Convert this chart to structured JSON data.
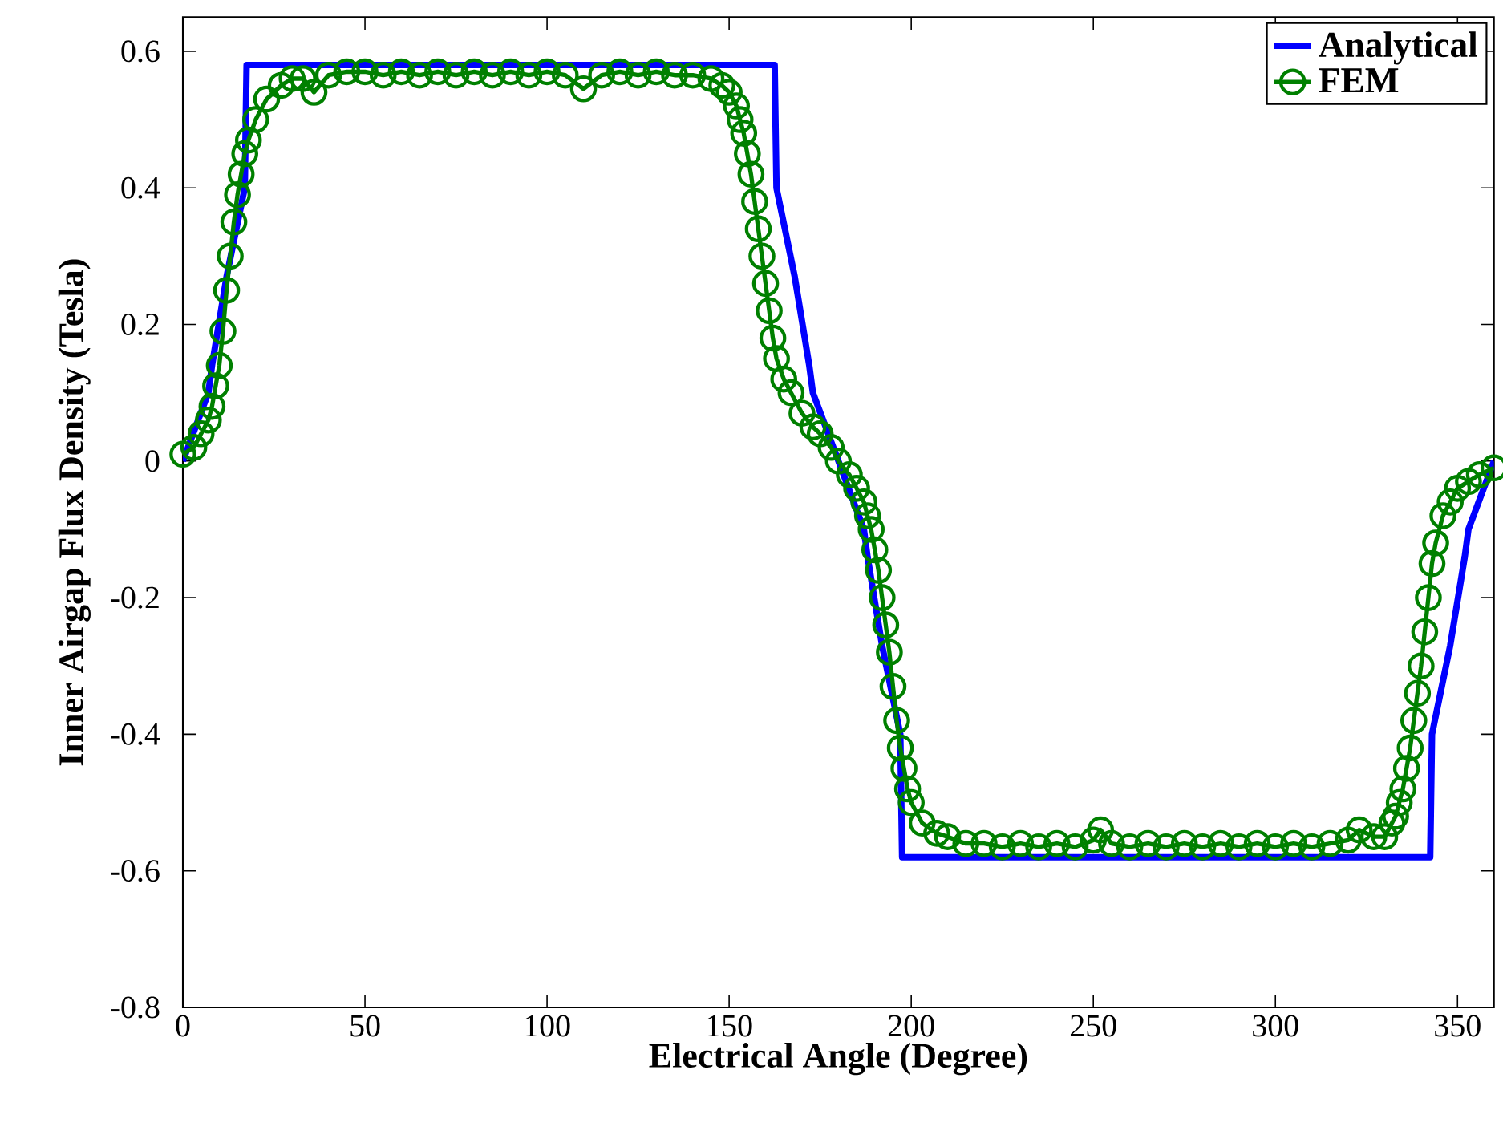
{
  "chart_data": {
    "type": "line",
    "xlabel": "Electrical Angle (Degree)",
    "ylabel": "Inner Airgap Flux Density (Tesla)",
    "xlim": [
      0,
      360
    ],
    "ylim": [
      -0.8,
      0.65
    ],
    "xticks": [
      0,
      50,
      100,
      150,
      200,
      250,
      300,
      350
    ],
    "yticks": [
      -0.8,
      -0.6,
      -0.4,
      -0.2,
      0,
      0.2,
      0.4,
      0.6
    ],
    "grid": false,
    "legend": "top right",
    "series": [
      {
        "name": "Analytical",
        "color": "#0000ff",
        "marker": "none",
        "x": [
          0,
          7,
          8,
          12,
          17,
          17.5,
          162.5,
          163,
          168,
          172,
          173,
          180,
          187,
          188,
          192,
          197,
          197.5,
          342.5,
          343,
          348,
          352,
          353,
          360
        ],
        "values": [
          0,
          0.1,
          0.14,
          0.27,
          0.4,
          0.58,
          0.58,
          0.4,
          0.27,
          0.14,
          0.1,
          0,
          -0.1,
          -0.14,
          -0.27,
          -0.4,
          -0.58,
          -0.58,
          -0.4,
          -0.27,
          -0.14,
          -0.1,
          0
        ]
      },
      {
        "name": "FEM",
        "color": "#008000",
        "marker": "circle",
        "x": [
          0,
          3,
          5,
          7,
          8,
          9,
          10,
          11,
          12,
          13,
          14,
          15,
          16,
          17,
          18,
          20,
          23,
          27,
          30,
          33,
          36,
          40,
          45,
          50,
          55,
          60,
          65,
          70,
          75,
          80,
          85,
          90,
          95,
          100,
          105,
          110,
          115,
          120,
          125,
          130,
          135,
          140,
          145,
          148,
          150,
          152,
          153,
          154,
          155,
          156,
          157,
          158,
          159,
          160,
          161,
          162,
          163,
          165,
          167,
          170,
          173,
          175,
          178,
          180,
          183,
          185,
          187,
          188,
          189,
          190,
          191,
          192,
          193,
          194,
          195,
          196,
          197,
          198,
          199,
          200,
          203,
          207,
          210,
          215,
          220,
          225,
          230,
          235,
          240,
          245,
          250,
          252,
          255,
          260,
          265,
          270,
          275,
          280,
          285,
          290,
          295,
          300,
          305,
          310,
          315,
          320,
          323,
          327,
          330,
          332,
          333,
          334,
          335,
          336,
          337,
          338,
          339,
          340,
          341,
          342,
          343,
          344,
          346,
          348,
          350,
          353,
          356,
          360
        ],
        "values": [
          0.01,
          0.02,
          0.04,
          0.06,
          0.08,
          0.11,
          0.14,
          0.19,
          0.25,
          0.3,
          0.35,
          0.39,
          0.42,
          0.45,
          0.47,
          0.5,
          0.53,
          0.55,
          0.56,
          0.56,
          0.54,
          0.565,
          0.57,
          0.57,
          0.565,
          0.57,
          0.565,
          0.57,
          0.565,
          0.57,
          0.565,
          0.57,
          0.565,
          0.57,
          0.565,
          0.545,
          0.565,
          0.57,
          0.565,
          0.57,
          0.565,
          0.565,
          0.56,
          0.55,
          0.54,
          0.52,
          0.5,
          0.48,
          0.45,
          0.42,
          0.38,
          0.34,
          0.3,
          0.26,
          0.22,
          0.18,
          0.15,
          0.12,
          0.1,
          0.07,
          0.05,
          0.04,
          0.02,
          0.0,
          -0.02,
          -0.04,
          -0.06,
          -0.08,
          -0.1,
          -0.13,
          -0.16,
          -0.2,
          -0.24,
          -0.28,
          -0.33,
          -0.38,
          -0.42,
          -0.45,
          -0.48,
          -0.5,
          -0.53,
          -0.545,
          -0.55,
          -0.56,
          -0.56,
          -0.565,
          -0.56,
          -0.565,
          -0.56,
          -0.565,
          -0.555,
          -0.54,
          -0.56,
          -0.565,
          -0.56,
          -0.565,
          -0.56,
          -0.565,
          -0.56,
          -0.565,
          -0.56,
          -0.565,
          -0.56,
          -0.565,
          -0.56,
          -0.555,
          -0.54,
          -0.55,
          -0.55,
          -0.53,
          -0.52,
          -0.5,
          -0.48,
          -0.45,
          -0.42,
          -0.38,
          -0.34,
          -0.3,
          -0.25,
          -0.2,
          -0.15,
          -0.12,
          -0.08,
          -0.06,
          -0.04,
          -0.03,
          -0.02,
          -0.01
        ]
      }
    ]
  }
}
